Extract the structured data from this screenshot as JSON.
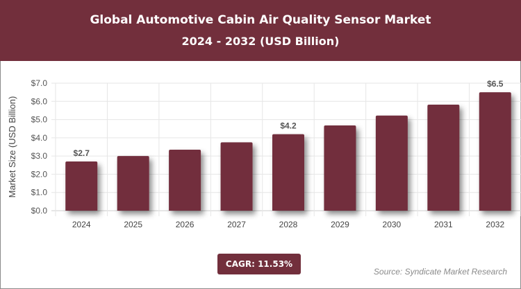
{
  "header": {
    "title": "Global Automotive Cabin Air Quality Sensor Market",
    "subtitle": "2024 - 2032 (USD Billion)"
  },
  "chart_data": {
    "type": "bar",
    "categories": [
      "2024",
      "2025",
      "2026",
      "2027",
      "2028",
      "2029",
      "2030",
      "2031",
      "2032"
    ],
    "values": [
      2.7,
      3.0,
      3.35,
      3.75,
      4.2,
      4.68,
      5.22,
      5.82,
      6.5
    ],
    "data_labels": {
      "0": "$2.7",
      "4": "$4.2",
      "8": "$6.5"
    },
    "ylabel": "Market Size (USD Billion)",
    "ylim": [
      0,
      7
    ],
    "yticks": [
      "$0.0",
      "$1.0",
      "$2.0",
      "$3.0",
      "$4.0",
      "$5.0",
      "$6.0",
      "$7.0"
    ],
    "grid": true,
    "bar_color": "#722f3c"
  },
  "footer": {
    "cagr": "CAGR: 11.53%",
    "source": "Source: Syndicate Market Research"
  }
}
